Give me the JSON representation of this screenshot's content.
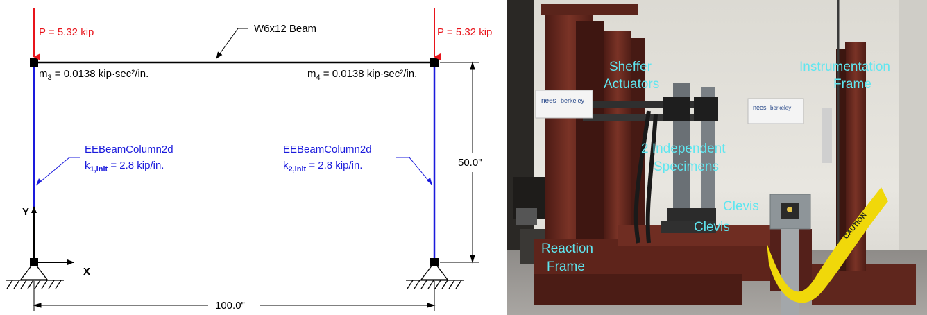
{
  "frame_diagram": {
    "load_left": "P = 5.32 kip",
    "load_right": "P = 5.32 kip",
    "beam_label": "W6x12 Beam",
    "mass_left": {
      "symbol": "m",
      "subscript": "3",
      "value": " = 0.0138 kip·sec²/in."
    },
    "mass_right": {
      "symbol": "m",
      "subscript": "4",
      "value": " = 0.0138 kip·sec²/in."
    },
    "column_left": {
      "element": "EEBeamColumn2d",
      "k_symbol": "k",
      "k_subscript": "1,init",
      "k_value": " = 2.8 kip/in."
    },
    "column_right": {
      "element": "EEBeamColumn2d",
      "k_symbol": "k",
      "k_subscript": "2,init",
      "k_value": " = 2.8 kip/in."
    },
    "height_dim": "50.0\"",
    "width_dim": "100.0\"",
    "axis_y": "Y",
    "axis_x": "X",
    "colors": {
      "load": "#e8141b",
      "column": "#1a1adc",
      "text": "#000000"
    }
  },
  "photo": {
    "labels": {
      "sheffer": [
        "Sheffer",
        "Actuators"
      ],
      "instrumentation": [
        "Instrumentation",
        "Frame"
      ],
      "specimens": [
        "2 Independent",
        "Specimens"
      ],
      "clevis_top": "Clevis",
      "clevis_bottom": "Clevis",
      "reaction": [
        "Reaction",
        "Frame"
      ]
    },
    "sign_left": {
      "logo": "nees",
      "org": "berkeley"
    },
    "sign_right": {
      "logo": "nees",
      "org": "berkeley"
    },
    "caution_tape": "CAUTION",
    "colors": {
      "label": "#5fe6f0",
      "steel": "#6b2a20",
      "wall": "#e4e2dc",
      "floor": "#9c9896"
    }
  }
}
